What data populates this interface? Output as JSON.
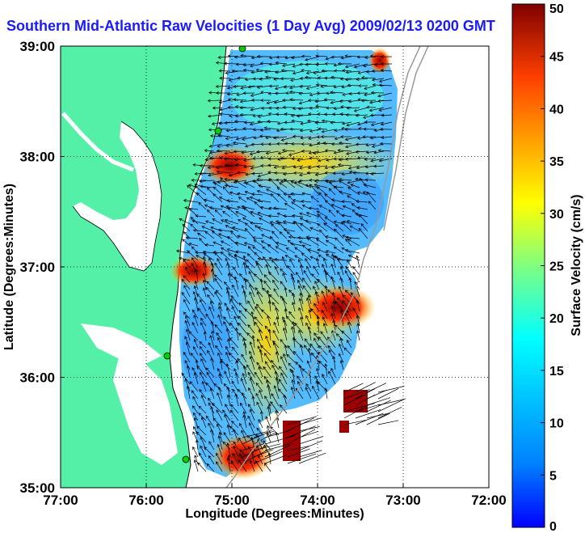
{
  "title": "Southern Mid-Atlantic Raw Velocities (1 Day Avg) 2009/02/13 0200 GMT",
  "x_axis": {
    "label": "Longitude (Degrees:Minutes)",
    "ticks": [
      "77:00",
      "76:00",
      "75:00",
      "74:00",
      "73:00",
      "72:00"
    ]
  },
  "y_axis": {
    "label": "Latitude (Degrees:Minutes)",
    "ticks": [
      "39:00",
      "38:00",
      "37:00",
      "36:00",
      "35:00"
    ]
  },
  "colorbar": {
    "label": "Surface Velocity (cm/s)",
    "ticks": [
      "50",
      "45",
      "40",
      "35",
      "30",
      "25",
      "20",
      "15",
      "10",
      "5",
      "0"
    ],
    "min": 0,
    "max": 50
  },
  "colors": {
    "land": "#55f0a8",
    "water": "#ffffff",
    "title": "#1a1aff"
  }
}
